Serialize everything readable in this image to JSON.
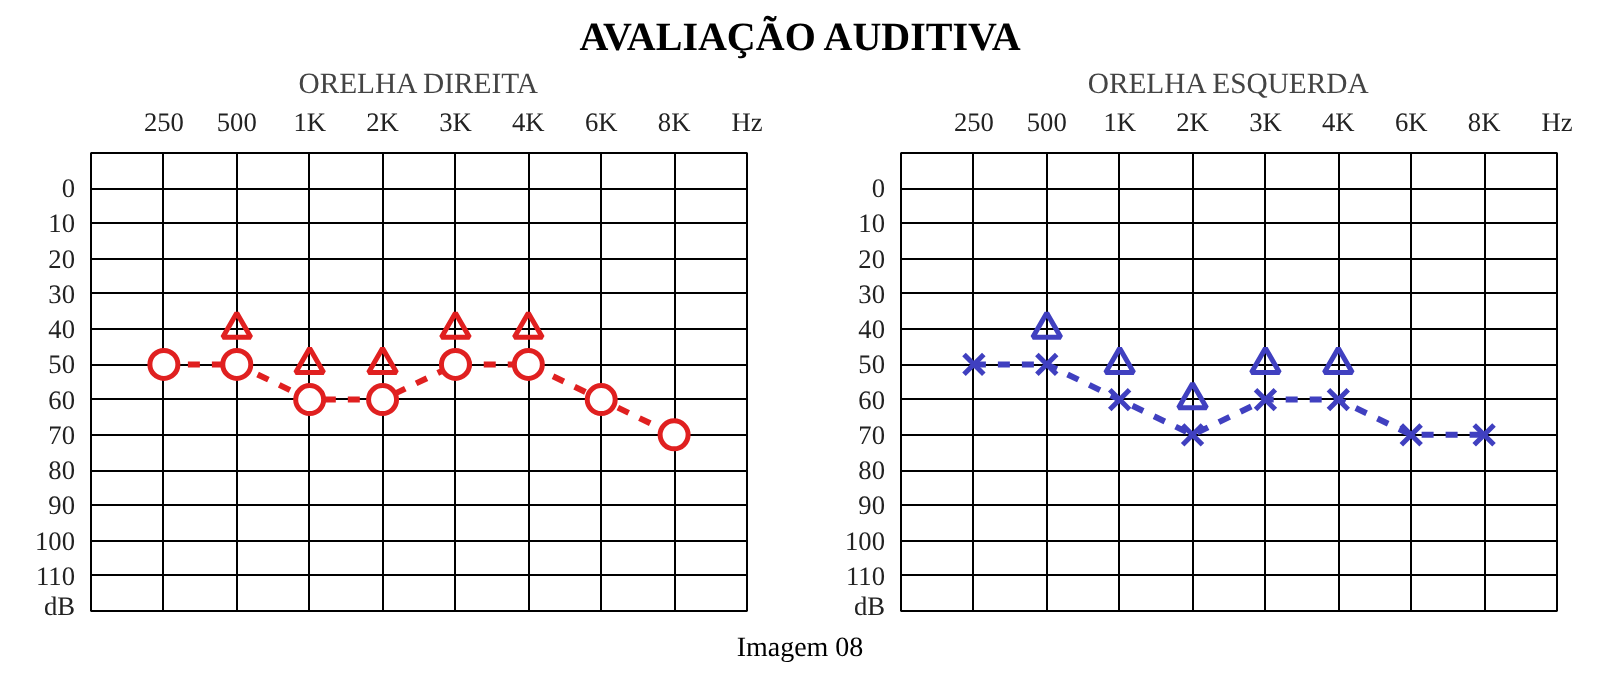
{
  "chart_data": [
    {
      "type": "line",
      "title": "AVALIAÇÃO AUDITIVA",
      "subtitle": "ORELHA DIREITA",
      "xlabel": "Hz",
      "categories": [
        "250",
        "500",
        "1K",
        "2K",
        "3K",
        "4K",
        "6K",
        "8K"
      ],
      "series": [
        {
          "color": "#e02020",
          "values": [
            50,
            50,
            60,
            60,
            50,
            50,
            60,
            70
          ],
          "marker": "circle",
          "line_style": "dashed"
        },
        {
          "type": "scatter",
          "color": "#e02020",
          "values": [
            null,
            40,
            50,
            50,
            40,
            40,
            null,
            null
          ],
          "marker": "triangle"
        }
      ],
      "ylim": [
        120,
        -10
      ],
      "yticks": [
        0,
        10,
        20,
        30,
        40,
        50,
        60,
        70,
        80,
        90,
        100,
        110,
        {
          "value": 120,
          "label": "dB"
        }
      ],
      "grid": true,
      "annotations": [
        "Imagem 08"
      ]
    },
    {
      "type": "line",
      "subtitle": "ORELHA ESQUERDA",
      "xlabel": "Hz",
      "categories": [
        "250",
        "500",
        "1K",
        "2K",
        "3K",
        "4K",
        "6K",
        "8K"
      ],
      "series": [
        {
          "color": "#4040c0",
          "values": [
            50,
            50,
            60,
            70,
            60,
            60,
            70,
            70
          ],
          "marker": "cross",
          "line_style": "dashed"
        },
        {
          "type": "scatter",
          "color": "#4040c0",
          "values": [
            null,
            40,
            50,
            60,
            50,
            50,
            null,
            null
          ],
          "marker": "triangle"
        }
      ],
      "ylim": [
        120,
        -10
      ],
      "yticks": [
        0,
        10,
        20,
        30,
        40,
        50,
        60,
        70,
        80,
        90,
        100,
        110,
        {
          "value": 120,
          "label": "dB"
        }
      ],
      "grid": true
    }
  ]
}
